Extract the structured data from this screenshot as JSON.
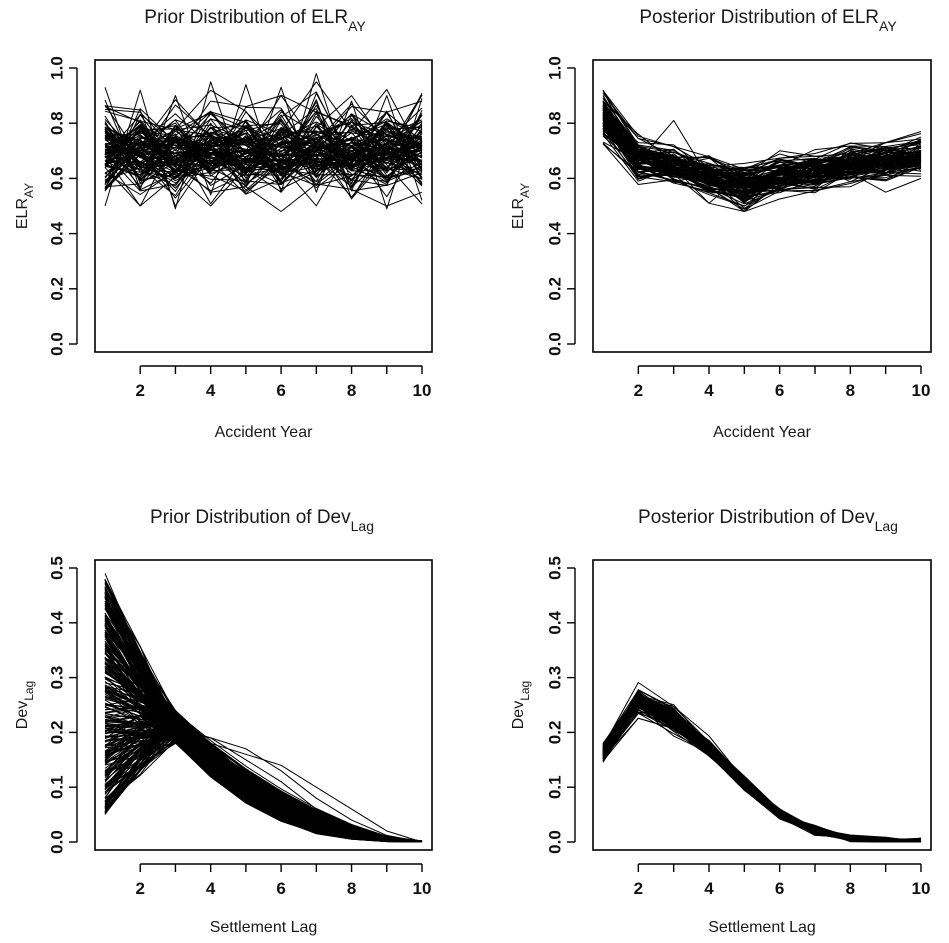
{
  "chart_data": [
    {
      "type": "line",
      "title": "Prior Distribution of ELR",
      "title_subscript": "AY",
      "xlabel": "Accident Year",
      "ylabel": "ELR",
      "ylabel_subscript": "AY",
      "x": [
        1,
        2,
        3,
        4,
        5,
        6,
        7,
        8,
        9,
        10
      ],
      "xlim": [
        1,
        10
      ],
      "ylim": [
        0,
        1
      ],
      "xticks": [
        2,
        4,
        6,
        8,
        10
      ],
      "yticks": [
        "0.0",
        "0.2",
        "0.4",
        "0.6",
        "0.8",
        "1.0"
      ],
      "grid": false,
      "legend": "none",
      "series_count": 100,
      "series": [
        {
          "values": [
            0.93,
            0.56,
            0.9,
            0.54,
            0.94,
            0.55,
            0.98,
            0.58,
            0.9,
            0.52
          ]
        },
        {
          "values": [
            0.5,
            0.92,
            0.49,
            0.95,
            0.57,
            0.93,
            0.55,
            0.88,
            0.49,
            0.89
          ]
        },
        {
          "values": [
            0.7,
            0.68,
            0.71,
            0.69,
            0.7,
            0.68,
            0.71,
            0.7,
            0.69,
            0.7
          ]
        },
        {
          "values": [
            0.8,
            0.6,
            0.78,
            0.62,
            0.81,
            0.59,
            0.79,
            0.63,
            0.8,
            0.6
          ]
        },
        {
          "values": [
            0.6,
            0.78,
            0.62,
            0.8,
            0.6,
            0.81,
            0.61,
            0.79,
            0.62,
            0.78
          ]
        },
        {
          "values": [
            0.74,
            0.66,
            0.73,
            0.65,
            0.75,
            0.66,
            0.72,
            0.67,
            0.74,
            0.65
          ]
        },
        {
          "values": [
            0.65,
            0.74,
            0.64,
            0.76,
            0.66,
            0.73,
            0.65,
            0.75,
            0.64,
            0.74
          ]
        },
        {
          "values": [
            0.85,
            0.84,
            0.7,
            0.88,
            0.86,
            0.9,
            0.72,
            0.86,
            0.84,
            0.88
          ]
        },
        {
          "values": [
            0.57,
            0.58,
            0.66,
            0.55,
            0.57,
            0.48,
            0.58,
            0.56,
            0.5,
            0.55
          ]
        }
      ]
    },
    {
      "type": "line",
      "title": "Posterior Distribution of ELR",
      "title_subscript": "AY",
      "xlabel": "Accident Year",
      "ylabel": "ELR",
      "ylabel_subscript": "AY",
      "x": [
        1,
        2,
        3,
        4,
        5,
        6,
        7,
        8,
        9,
        10
      ],
      "xlim": [
        1,
        10
      ],
      "ylim": [
        0,
        1
      ],
      "xticks": [
        2,
        4,
        6,
        8,
        10
      ],
      "yticks": [
        "0.0",
        "0.2",
        "0.4",
        "0.6",
        "0.8",
        "1.0"
      ],
      "grid": false,
      "legend": "none",
      "series_count": 100,
      "series": [
        {
          "values": [
            0.84,
            0.68,
            0.66,
            0.61,
            0.56,
            0.62,
            0.63,
            0.65,
            0.66,
            0.68
          ]
        },
        {
          "values": [
            0.92,
            0.66,
            0.81,
            0.6,
            0.48,
            0.64,
            0.61,
            0.66,
            0.67,
            0.74
          ]
        },
        {
          "values": [
            0.76,
            0.59,
            0.64,
            0.51,
            0.62,
            0.59,
            0.56,
            0.62,
            0.55,
            0.6
          ]
        },
        {
          "values": [
            0.88,
            0.76,
            0.66,
            0.63,
            0.61,
            0.7,
            0.68,
            0.69,
            0.73,
            0.77
          ]
        },
        {
          "values": [
            0.8,
            0.72,
            0.62,
            0.64,
            0.57,
            0.58,
            0.66,
            0.6,
            0.62,
            0.64
          ]
        },
        {
          "values": [
            0.86,
            0.61,
            0.69,
            0.58,
            0.59,
            0.66,
            0.6,
            0.68,
            0.64,
            0.7
          ]
        }
      ]
    },
    {
      "type": "line",
      "title": "Prior Distribution of Dev",
      "title_subscript": "Lag",
      "xlabel": "Settlement Lag",
      "ylabel": "Dev",
      "ylabel_subscript": "Lag",
      "x": [
        1,
        2,
        3,
        4,
        5,
        6,
        7,
        8,
        9,
        10
      ],
      "xlim": [
        1,
        10
      ],
      "ylim": [
        0,
        0.5
      ],
      "xticks": [
        2,
        4,
        6,
        8,
        10
      ],
      "yticks": [
        "0.0",
        "0.1",
        "0.2",
        "0.3",
        "0.4",
        "0.5"
      ],
      "grid": false,
      "legend": "none",
      "series_count": 300,
      "series": [
        {
          "values": [
            0.49,
            0.34,
            0.24,
            0.16,
            0.1,
            0.05,
            0.02,
            0.007,
            0.002,
            0.0
          ]
        },
        {
          "values": [
            0.05,
            0.14,
            0.18,
            0.18,
            0.16,
            0.14,
            0.1,
            0.06,
            0.02,
            0.0
          ]
        },
        {
          "values": [
            0.43,
            0.33,
            0.24,
            0.15,
            0.08,
            0.04,
            0.015,
            0.005,
            0.001,
            0.0
          ]
        },
        {
          "values": [
            0.08,
            0.17,
            0.2,
            0.19,
            0.17,
            0.13,
            0.08,
            0.04,
            0.012,
            0.0
          ]
        },
        {
          "values": [
            0.25,
            0.26,
            0.22,
            0.17,
            0.11,
            0.07,
            0.04,
            0.015,
            0.003,
            0.0
          ]
        },
        {
          "values": [
            0.35,
            0.3,
            0.24,
            0.18,
            0.12,
            0.06,
            0.025,
            0.008,
            0.002,
            0.0
          ]
        },
        {
          "values": [
            0.15,
            0.21,
            0.21,
            0.19,
            0.15,
            0.11,
            0.06,
            0.03,
            0.008,
            0.0
          ]
        }
      ]
    },
    {
      "type": "line",
      "title": "Posterior Distribution of Dev",
      "title_subscript": "Lag",
      "xlabel": "Settlement Lag",
      "ylabel": "Dev",
      "ylabel_subscript": "Lag",
      "x": [
        1,
        2,
        3,
        4,
        5,
        6,
        7,
        8,
        9,
        10
      ],
      "xlim": [
        1,
        10
      ],
      "ylim": [
        0,
        0.5
      ],
      "xticks": [
        2,
        4,
        6,
        8,
        10
      ],
      "yticks": [
        "0.0",
        "0.1",
        "0.2",
        "0.3",
        "0.4",
        "0.5"
      ],
      "grid": false,
      "legend": "none",
      "series_count": 100,
      "series": [
        {
          "values": [
            0.17,
            0.26,
            0.22,
            0.17,
            0.11,
            0.05,
            0.02,
            0.007,
            0.002,
            0.0
          ]
        },
        {
          "values": [
            0.15,
            0.25,
            0.23,
            0.17,
            0.1,
            0.05,
            0.02,
            0.006,
            0.001,
            0.0
          ]
        },
        {
          "values": [
            0.18,
            0.27,
            0.24,
            0.18,
            0.11,
            0.06,
            0.025,
            0.008,
            0.002,
            0.0
          ]
        }
      ]
    }
  ]
}
